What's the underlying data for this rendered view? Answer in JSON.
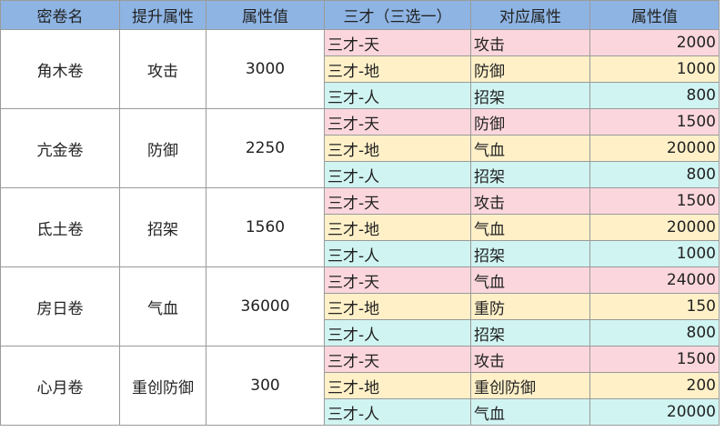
{
  "table": {
    "headers": [
      "密卷名",
      "提升属性",
      "属性值",
      "三才（三选一）",
      "对应属性",
      "属性值"
    ],
    "groups": [
      {
        "name": "角木卷",
        "attribute": "攻击",
        "value": 3000,
        "rows": [
          [
            "三才-天",
            "攻击",
            2000
          ],
          [
            "三才-地",
            "防御",
            1000
          ],
          [
            "三才-人",
            "招架",
            800
          ]
        ]
      },
      {
        "name": "亢金卷",
        "attribute": "防御",
        "value": 2250,
        "rows": [
          [
            "三才-天",
            "防御",
            1500
          ],
          [
            "三才-地",
            "气血",
            20000
          ],
          [
            "三才-人",
            "招架",
            800
          ]
        ]
      },
      {
        "name": "氐土卷",
        "attribute": "招架",
        "value": 1560,
        "rows": [
          [
            "三才-天",
            "攻击",
            1500
          ],
          [
            "三才-地",
            "气血",
            20000
          ],
          [
            "三才-人",
            "招架",
            1000
          ]
        ]
      },
      {
        "name": "房日卷",
        "attribute": "气血",
        "value": 36000,
        "rows": [
          [
            "三才-天",
            "气血",
            24000
          ],
          [
            "三才-地",
            "重防",
            150
          ],
          [
            "三才-人",
            "招架",
            800
          ]
        ]
      },
      {
        "name": "心月卷",
        "attribute": "重创防御",
        "value": 300,
        "rows": [
          [
            "三才-天",
            "攻击",
            1500
          ],
          [
            "三才-地",
            "重创防御",
            200
          ],
          [
            "三才-人",
            "气血",
            20000
          ]
        ]
      }
    ]
  }
}
